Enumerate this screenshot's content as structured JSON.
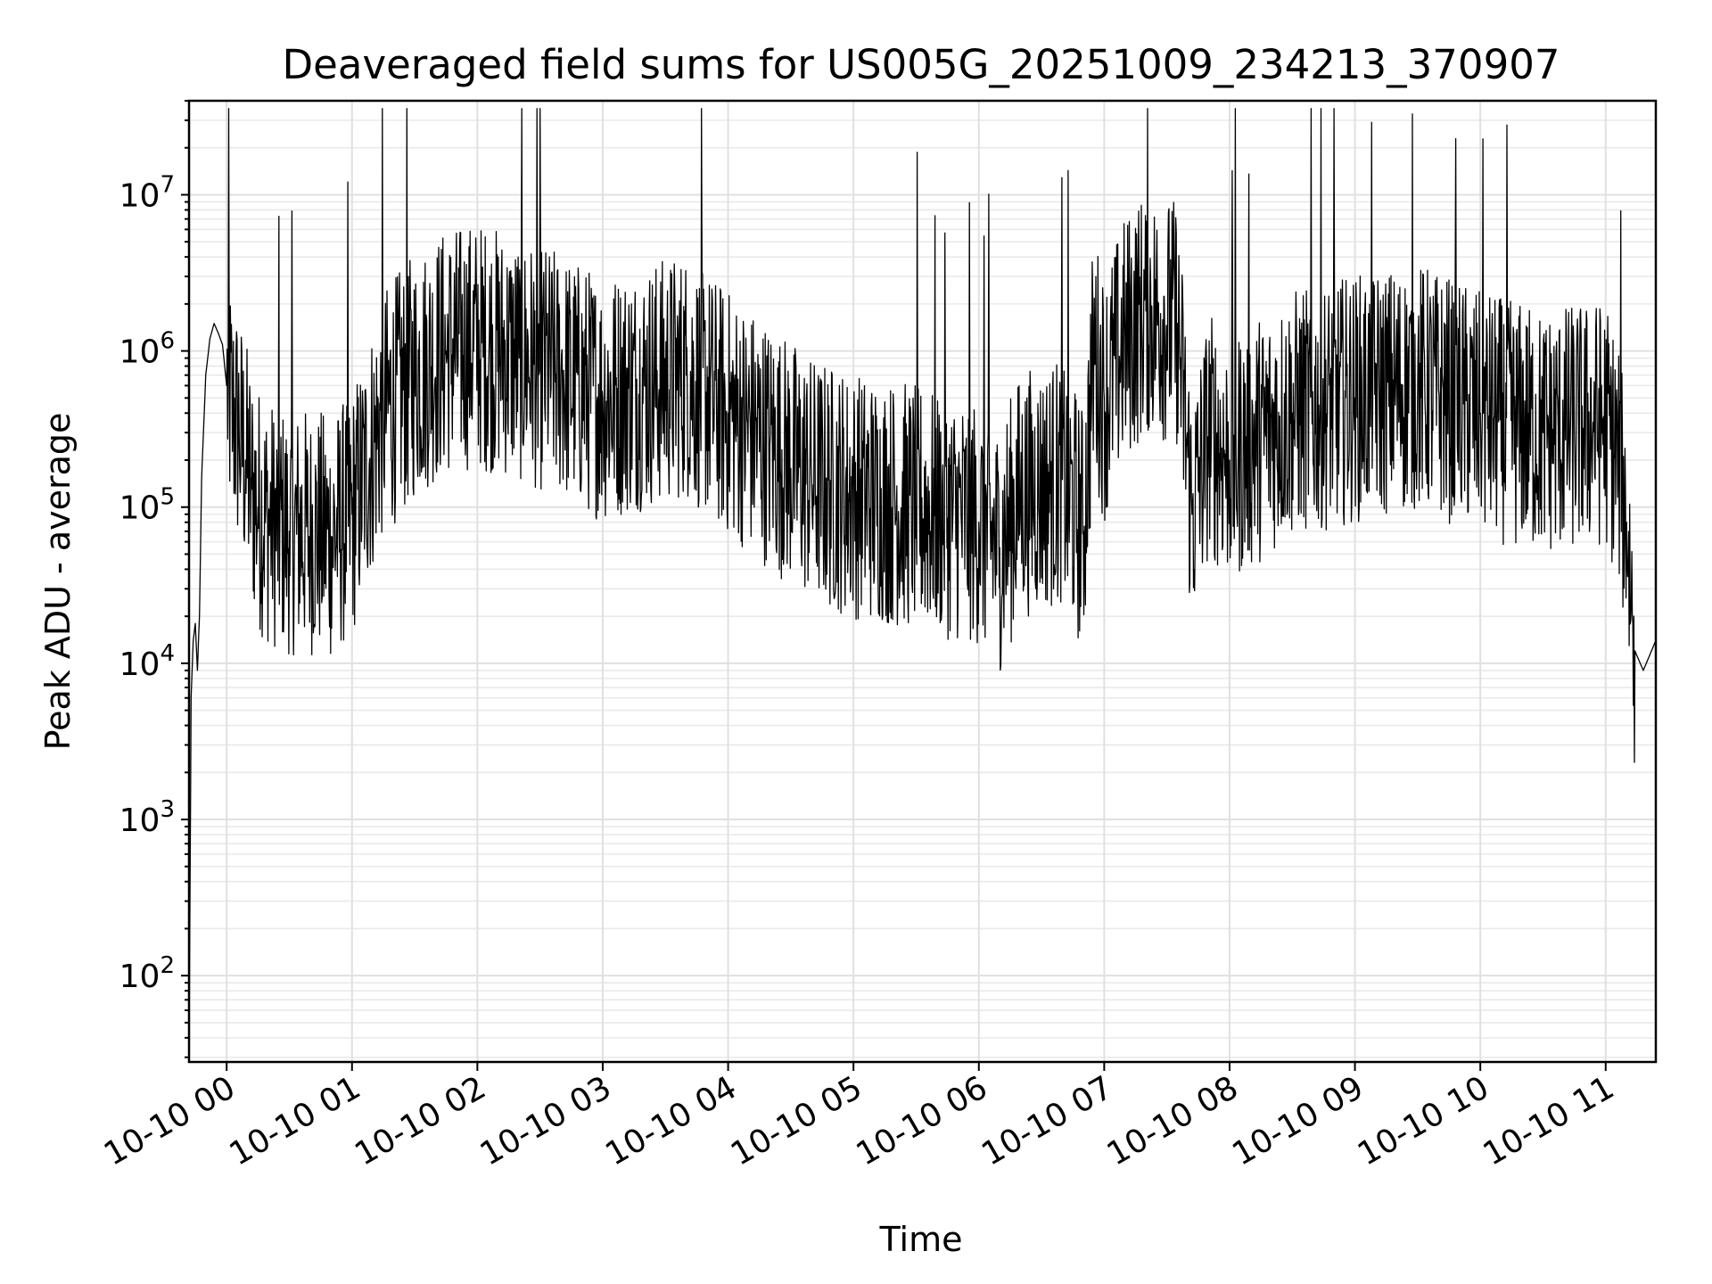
{
  "chart_data": {
    "type": "line",
    "title": "Deaveraged field sums for US005G_20251009_234213_370907",
    "xlabel": "Time",
    "ylabel": "Peak ADU - average",
    "yscale": "log",
    "grid": true,
    "line_color": "#000000",
    "xlim": [
      "2025-10-09 23:42",
      "2025-10-10 11:24"
    ],
    "ylim": [
      28,
      40000000
    ],
    "x_ticks": [
      {
        "value": "2025-10-10 00:00",
        "label": "10-10 00"
      },
      {
        "value": "2025-10-10 01:00",
        "label": "10-10 01"
      },
      {
        "value": "2025-10-10 02:00",
        "label": "10-10 02"
      },
      {
        "value": "2025-10-10 03:00",
        "label": "10-10 03"
      },
      {
        "value": "2025-10-10 04:00",
        "label": "10-10 04"
      },
      {
        "value": "2025-10-10 05:00",
        "label": "10-10 05"
      },
      {
        "value": "2025-10-10 06:00",
        "label": "10-10 06"
      },
      {
        "value": "2025-10-10 07:00",
        "label": "10-10 07"
      },
      {
        "value": "2025-10-10 08:00",
        "label": "10-10 08"
      },
      {
        "value": "2025-10-10 09:00",
        "label": "10-10 09"
      },
      {
        "value": "2025-10-10 10:00",
        "label": "10-10 10"
      },
      {
        "value": "2025-10-10 11:00",
        "label": "10-10 11"
      }
    ],
    "y_ticks": [
      {
        "value": 100,
        "base": "10",
        "exp": "2"
      },
      {
        "value": 1000,
        "base": "10",
        "exp": "3"
      },
      {
        "value": 10000,
        "base": "10",
        "exp": "4"
      },
      {
        "value": 100000,
        "base": "10",
        "exp": "5"
      },
      {
        "value": 1000000,
        "base": "10",
        "exp": "6"
      },
      {
        "value": 10000000,
        "base": "10",
        "exp": "7"
      }
    ],
    "series": [
      {
        "points": [
          [
            "2025-10-09 23:42",
            30
          ],
          [
            "2025-10-09 23:43",
            6000
          ],
          [
            "2025-10-09 23:44",
            14000
          ],
          [
            "2025-10-09 23:45",
            18000
          ],
          [
            "2025-10-09 23:46",
            9000
          ],
          [
            "2025-10-09 23:47",
            20000
          ],
          [
            "2025-10-09 23:48",
            150000
          ],
          [
            "2025-10-09 23:50",
            700000
          ],
          [
            "2025-10-09 23:52",
            1200000
          ],
          [
            "2025-10-09 23:54",
            1500000
          ],
          [
            "2025-10-09 23:56",
            1300000
          ],
          [
            "2025-10-09 23:58",
            1100000
          ],
          [
            "2025-10-10 00:00",
            600000
          ],
          [
            "2025-10-10 00:03",
            400000
          ],
          [
            "2025-10-10 00:06",
            300000
          ],
          [
            "2025-10-10 00:09",
            200000
          ],
          [
            "2025-10-10 00:12",
            130000
          ],
          [
            "2025-10-10 00:15",
            100000
          ],
          [
            "2025-10-10 00:20",
            80000
          ],
          [
            "2025-10-10 00:30",
            70000
          ],
          [
            "2025-10-10 00:40",
            70000
          ],
          [
            "2025-10-10 00:50",
            65000
          ],
          [
            "2025-10-10 01:00",
            90000
          ],
          [
            "2025-10-10 01:15",
            400000
          ],
          [
            "2025-10-10 01:30",
            700000
          ],
          [
            "2025-10-10 01:45",
            1000000
          ],
          [
            "2025-10-10 02:00",
            1100000
          ],
          [
            "2025-10-10 02:20",
            900000
          ],
          [
            "2025-10-10 02:40",
            700000
          ],
          [
            "2025-10-10 03:00",
            500000
          ],
          [
            "2025-10-10 03:20",
            600000
          ],
          [
            "2025-10-10 03:40",
            700000
          ],
          [
            "2025-10-10 04:00",
            400000
          ],
          [
            "2025-10-10 04:20",
            250000
          ],
          [
            "2025-10-10 04:40",
            150000
          ],
          [
            "2025-10-10 05:00",
            120000
          ],
          [
            "2025-10-10 05:30",
            100000
          ],
          [
            "2025-10-10 06:00",
            80000
          ],
          [
            "2025-10-10 06:10",
            55000
          ],
          [
            "2025-10-10 06:20",
            120000
          ],
          [
            "2025-10-10 06:40",
            150000
          ],
          [
            "2025-10-10 06:50",
            70000
          ],
          [
            "2025-10-10 06:55",
            1000000
          ],
          [
            "2025-10-10 07:00",
            500000
          ],
          [
            "2025-10-10 07:10",
            1200000
          ],
          [
            "2025-10-10 07:20",
            1800000
          ],
          [
            "2025-10-10 07:35",
            1500000
          ],
          [
            "2025-10-10 07:42",
            90000
          ],
          [
            "2025-10-10 07:50",
            300000
          ],
          [
            "2025-10-10 08:00",
            200000
          ],
          [
            "2025-10-10 08:30",
            400000
          ],
          [
            "2025-10-10 09:00",
            500000
          ],
          [
            "2025-10-10 09:30",
            600000
          ],
          [
            "2025-10-10 10:00",
            400000
          ],
          [
            "2025-10-10 10:30",
            300000
          ],
          [
            "2025-10-10 11:00",
            350000
          ],
          [
            "2025-10-10 11:06",
            200000
          ],
          [
            "2025-10-10 11:10",
            80000
          ],
          [
            "2025-10-10 11:14",
            12000
          ],
          [
            "2025-10-10 11:18",
            9000
          ],
          [
            "2025-10-10 11:24",
            14000
          ]
        ]
      }
    ]
  }
}
